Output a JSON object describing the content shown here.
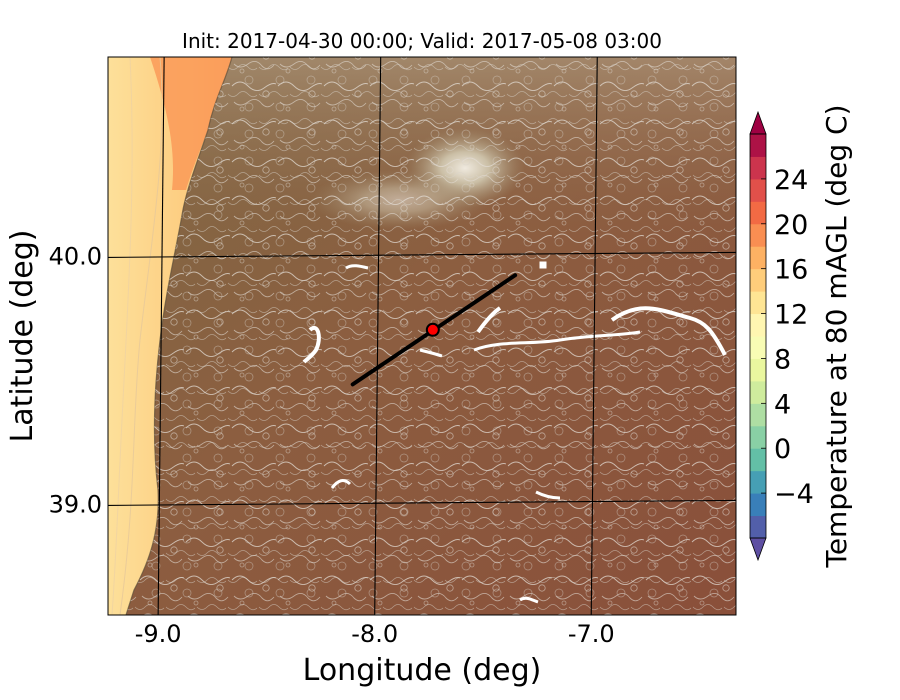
{
  "title": "Init: 2017-04-30 00:00; Valid: 2017-05-08 03:00",
  "map": {
    "xlabel": "Longitude (deg)",
    "ylabel": "Latitude (deg)",
    "xlim": [
      -9.25,
      -6.35
    ],
    "ylim": [
      38.55,
      40.8
    ],
    "xticks": [
      -9.0,
      -8.0,
      -7.0
    ],
    "xtick_labels": [
      "-9.0",
      "-8.0",
      "-7.0"
    ],
    "yticks": [
      39.0,
      40.0
    ],
    "ytick_labels": [
      "39.0",
      "40.0"
    ],
    "grid": true,
    "transect": {
      "start": {
        "lon": -8.12,
        "lat": 39.48
      },
      "end": {
        "lon": -7.37,
        "lat": 39.92
      }
    },
    "marker": {
      "lon": -7.75,
      "lat": 39.7,
      "color": "#ff0000"
    },
    "colors": {
      "ocean_light": "#fdd389",
      "ocean_warm": "#fba05e",
      "land": "#8a5a3e",
      "land_highlands": "#9a8a6e",
      "mountain_peak": "#e8e4da",
      "contour": "#e6e6e6",
      "water_bodies": "#ffffff"
    }
  },
  "colorbar": {
    "label": "Temperature at 80 mAGL (deg C)",
    "range": [
      -8,
      28
    ],
    "ticks": [
      -4,
      0,
      4,
      8,
      12,
      16,
      20,
      24
    ],
    "tick_labels": [
      "−4",
      "0",
      "4",
      "8",
      "12",
      "16",
      "20",
      "24"
    ],
    "extend": "both",
    "colormap": "Spectral_r",
    "colors": [
      "#5e4fa2",
      "#3288bd",
      "#66c2a5",
      "#abdda4",
      "#e6f598",
      "#ffffbf",
      "#fee08b",
      "#fdae61",
      "#f46d43",
      "#d53e4f",
      "#9e0142"
    ]
  }
}
